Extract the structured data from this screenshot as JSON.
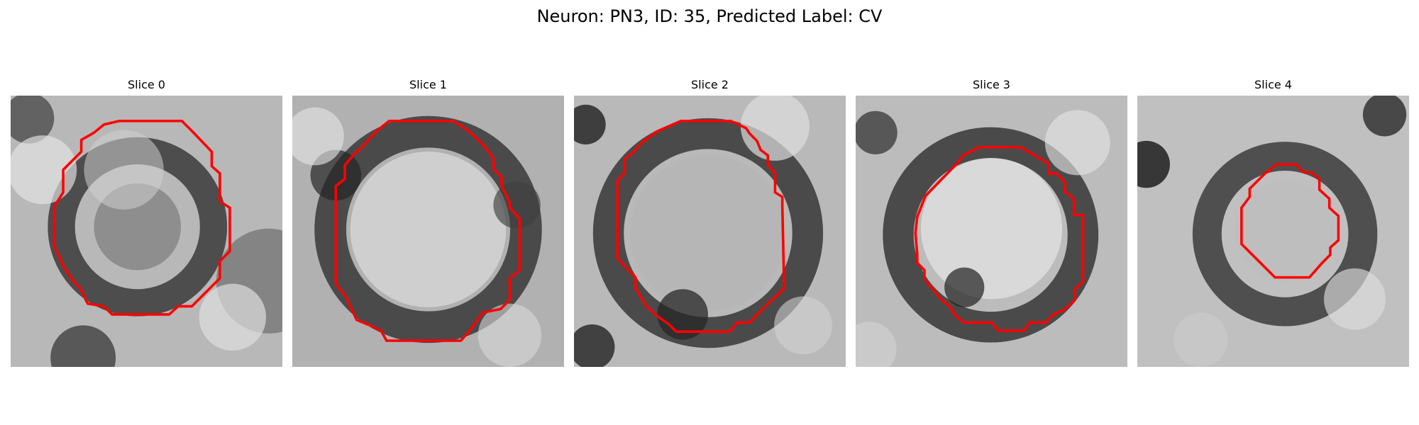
{
  "figure": {
    "title": "Neuron: PN3, ID: 35, Predicted Label: CV"
  },
  "colors": {
    "contour": "#ff0000",
    "background": "#ffffff"
  },
  "slices": [
    {
      "title": "Slice 0"
    },
    {
      "title": "Slice 1"
    },
    {
      "title": "Slice 2"
    },
    {
      "title": "Slice 3"
    },
    {
      "title": "Slice 4"
    }
  ]
}
